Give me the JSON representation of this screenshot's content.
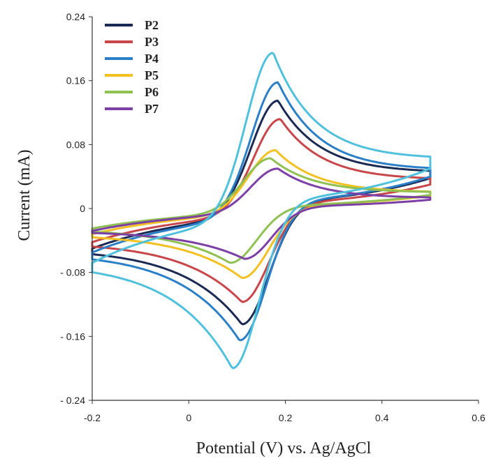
{
  "chart_data": {
    "type": "line",
    "title": "",
    "xlabel": "Potential (V) vs. Ag/AgCl",
    "ylabel": "Current (mA)",
    "xlim": [
      -0.2,
      0.6
    ],
    "ylim": [
      -0.24,
      0.24
    ],
    "x_ticks": [
      "-0.2",
      "0",
      "0.2",
      "0.4",
      "0.6"
    ],
    "y_ticks": [
      "0.24",
      "0.16",
      "0.08",
      "0",
      "- 0.08",
      "- 0.16",
      "- 0.24"
    ],
    "grid": false,
    "legend_position": "top-left",
    "series": [
      {
        "name": "P2",
        "color": "#1b2a55",
        "E_red": 0.11,
        "E_ox": 0.185,
        "ipc": -0.145,
        "ipa": 0.135,
        "i_end_forward": 0.045,
        "i_end_reverse": 0.038,
        "i_start": -0.05
      },
      {
        "name": "P3",
        "color": "#c8464a",
        "E_red": 0.11,
        "E_ox": 0.19,
        "ipc": -0.117,
        "ipa": 0.112,
        "i_end_forward": 0.036,
        "i_end_reverse": 0.03,
        "i_start": -0.042
      },
      {
        "name": "P4",
        "color": "#2a7fc6",
        "E_red": 0.105,
        "E_ox": 0.185,
        "ipc": -0.165,
        "ipa": 0.158,
        "i_end_forward": 0.048,
        "i_end_reverse": 0.04,
        "i_start": -0.055
      },
      {
        "name": "P5",
        "color": "#f2c021",
        "E_red": 0.11,
        "E_ox": 0.18,
        "ipc": -0.087,
        "ipa": 0.073,
        "i_end_forward": 0.02,
        "i_end_reverse": 0.016,
        "i_start": -0.032
      },
      {
        "name": "P6",
        "color": "#8fc152",
        "E_red": 0.085,
        "E_ox": 0.17,
        "ipc": -0.068,
        "ipa": 0.063,
        "i_end_forward": 0.02,
        "i_end_reverse": 0.017,
        "i_start": -0.025
      },
      {
        "name": "P7",
        "color": "#7b3fa6",
        "E_red": 0.115,
        "E_ox": 0.185,
        "ipc": -0.063,
        "ipa": 0.05,
        "i_end_forward": 0.013,
        "i_end_reverse": 0.011,
        "i_start": -0.028
      },
      {
        "name": "",
        "color": "#4fc1dd",
        "E_red": 0.09,
        "E_ox": 0.175,
        "ipc": -0.2,
        "ipa": 0.195,
        "i_end_forward": 0.062,
        "i_end_reverse": 0.05,
        "i_start": -0.068
      }
    ]
  }
}
